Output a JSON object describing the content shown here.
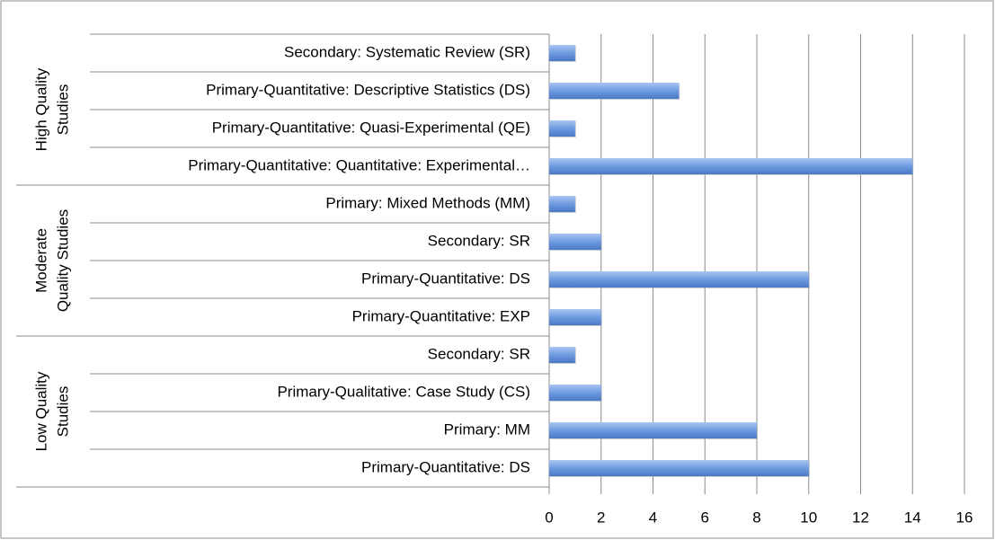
{
  "chart_data": {
    "type": "bar",
    "orientation": "horizontal",
    "color": "#6f9be0",
    "groups": [
      {
        "label": [
          "High Quality",
          "Studies"
        ],
        "categories": [
          "Secondary: Systematic Review (SR)",
          "Primary-Quantitative: Descriptive Statistics (DS)",
          "Primary-Quantitative: Quasi-Experimental (QE)",
          "Primary-Quantitative: Quantitative: Experimental…"
        ],
        "values": [
          1,
          5,
          1,
          14
        ]
      },
      {
        "label": [
          "Moderate",
          "Quality Studies"
        ],
        "categories": [
          "Primary: Mixed Methods (MM)",
          "Secondary: SR",
          "Primary-Quantitative: DS",
          "Primary-Quantitative: EXP"
        ],
        "values": [
          1,
          2,
          10,
          2
        ]
      },
      {
        "label": [
          "Low Quality",
          "Studies"
        ],
        "categories": [
          "Secondary: SR",
          "Primary-Qualitative: Case Study (CS)",
          "Primary: MM",
          "Primary-Quantitative: DS"
        ],
        "values": [
          1,
          2,
          8,
          10
        ]
      }
    ],
    "xlim": [
      0,
      16
    ],
    "xticks": [
      0,
      2,
      4,
      6,
      8,
      10,
      12,
      14,
      16
    ],
    "grid": true
  }
}
